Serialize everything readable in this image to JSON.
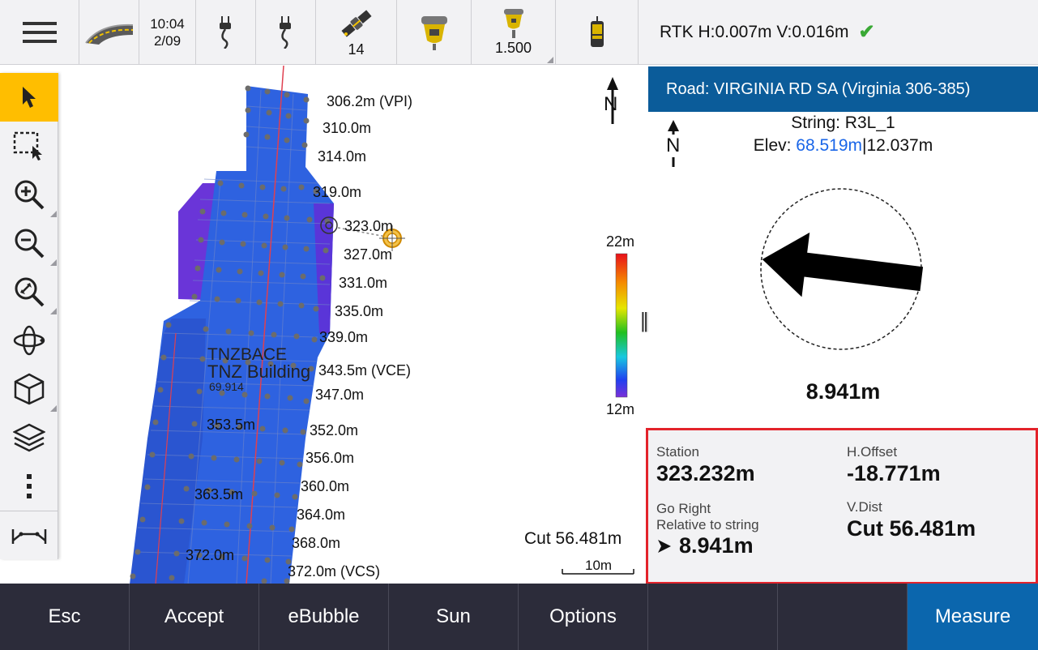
{
  "topbar": {
    "time": "10:04",
    "date": "2/09",
    "satellites": "14",
    "antenna_height": "1.500"
  },
  "status": {
    "precision": "RTK H:0.007m V:0.016m"
  },
  "map": {
    "north_label": "N",
    "station_labels": [
      "306.2m (VPI)",
      "310.0m",
      "314.0m",
      "319.0m",
      "323.0m",
      "327.0m",
      "331.0m",
      "335.0m",
      "339.0m",
      "343.5m (VCE)",
      "347.0m",
      "352.0m",
      "356.0m",
      "360.0m",
      "364.0m",
      "368.0m",
      "372.0m (VCS)"
    ],
    "left_station_labels": [
      "353.5m",
      "363.5m",
      "372.0m"
    ],
    "surface_label": "TNZBACE",
    "building_label": "TNZ Building",
    "elev_label": "69.914",
    "legend_max": "22m",
    "legend_min": "12m",
    "cut_label": "Cut 56.481m",
    "scale_label": "10m"
  },
  "panel": {
    "road_title": "Road: VIRGINIA RD SA (Virginia 306-385)",
    "north_label": "N",
    "string_label": "String: R3L_1",
    "elev_prefix": "Elev:",
    "elev_value": "68.519m",
    "elev_suffix": "|12.037m",
    "distance": "8.941m"
  },
  "info": {
    "station_label": "Station",
    "station_value": "323.232m",
    "hoffset_label": "H.Offset",
    "hoffset_value": "-18.771m",
    "go_label": "Go Right",
    "relative_label": "Relative to string",
    "go_value": "8.941m",
    "vdist_label": "V.Dist",
    "vdist_value": "Cut 56.481m"
  },
  "bottombar": {
    "esc": "Esc",
    "accept": "Accept",
    "ebubble": "eBubble",
    "sun": "Sun",
    "options": "Options",
    "measure": "Measure"
  },
  "colors": {
    "accent_yellow": "#ffbe00",
    "header_blue": "#0b5c9a",
    "measure_blue": "#0b66ad",
    "highlight_red": "#e3232b",
    "ok_green": "#3aa935",
    "surface_blue": "#2e62e0"
  }
}
